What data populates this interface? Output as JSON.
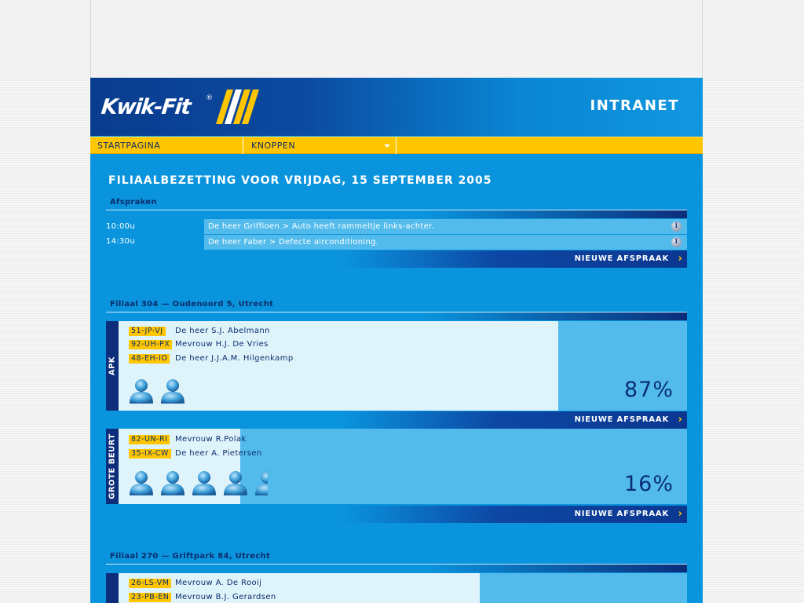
{
  "header": {
    "logo_text": "Kwik-Fit",
    "logo_reg": "®",
    "section": "INTRANET"
  },
  "menu": {
    "items": [
      {
        "label": "STARTPAGINA"
      },
      {
        "label": "KNOPPEN"
      },
      {
        "label": ""
      }
    ]
  },
  "title": "FILIAALBEZETTING VOOR VRIJDAG, 15 SEPTEMBER 2005",
  "afspraken": {
    "label": "Afspraken",
    "items": [
      {
        "time": "10:00u",
        "text": "De heer Griffioen > Auto heeft rammeltje links-achter."
      },
      {
        "time": "14:30u",
        "text": "De heer Faber > Defecte airconditioning."
      }
    ],
    "new_label": "NIEUWE AFSPRAAK"
  },
  "filialen": [
    {
      "label": "Filiaal 304 — Oudenoord 5, Utrecht",
      "panels": [
        {
          "tab": "APK",
          "fill_fraction": 0.87,
          "percent": "87%",
          "people": 2,
          "entries": [
            {
              "plate": "51-JP-VJ",
              "name": "De heer S.J. Abelmann"
            },
            {
              "plate": "92-UH-PX",
              "name": "Mevrouw H.J. De Vries"
            },
            {
              "plate": "48-EH-IO",
              "name": "De heer J.J.A.M. Hilgenkamp"
            }
          ],
          "new_label": "NIEUWE AFSPRAAK"
        },
        {
          "tab": "GROTE BEURT",
          "fill_fraction": 0.16,
          "percent": "16%",
          "people": 5,
          "entries": [
            {
              "plate": "82-UN-RI",
              "name": "Mevrouw R.Polak"
            },
            {
              "plate": "35-IX-CW",
              "name": "De heer A. Pietersen"
            }
          ],
          "new_label": "NIEUWE AFSPRAAK"
        }
      ]
    },
    {
      "label": "Filiaal 270 — Griftpark 84, Utrecht",
      "panels": [
        {
          "tab": "",
          "entries": [
            {
              "plate": "26-LS-VM",
              "name": "Mevrouw A. De Rooij"
            },
            {
              "plate": "23-PB-EN",
              "name": "Mevrouw B.J. Gerardsen"
            }
          ]
        }
      ]
    }
  ],
  "colors": {
    "background": "#0a94dd",
    "yellow": "#ffc600",
    "navy": "#0b2d7a",
    "light_panel": "#dff3fb",
    "mid_panel": "#52bbec"
  }
}
